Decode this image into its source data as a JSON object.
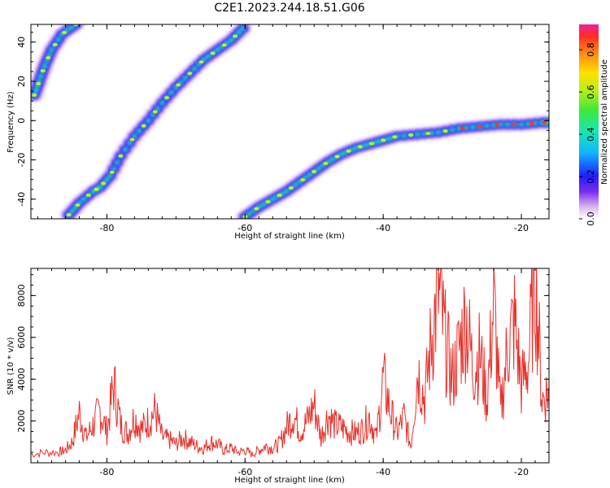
{
  "title": "C2E1.2023.244.18.51.G06",
  "chart_data": [
    {
      "type": "heatmap",
      "xlabel": "Height of straight line (km)",
      "ylabel": "Frequency (Hz)",
      "xlim": [
        -91,
        -16
      ],
      "ylim": [
        -50,
        49
      ],
      "xticks": [
        -80,
        -60,
        -40,
        -20
      ],
      "yticks": [
        -40,
        -20,
        0,
        20,
        40
      ],
      "colorbar": {
        "label": "Normalized spectral amplitude",
        "range": [
          0.0,
          0.92
        ],
        "ticks": [
          "0.0",
          "0.2",
          "0.4",
          "0.6",
          "0.8"
        ]
      },
      "tracks": [
        {
          "x": [
            -85.5,
            -84,
            -82,
            -81,
            -79.5,
            -78,
            -76,
            -74,
            -72,
            -70,
            -68,
            -66,
            -64,
            -62,
            -60.3
          ],
          "y": [
            -48,
            -42,
            -36,
            -34,
            -28,
            -18,
            -8,
            0,
            9,
            17,
            24,
            31,
            36,
            41,
            47
          ]
        },
        {
          "x": [
            -90.5,
            -89.8,
            -89,
            -88,
            -86.5,
            -84.5
          ],
          "y": [
            13,
            20,
            28,
            36,
            44,
            49
          ]
        },
        {
          "x": [
            -60,
            -58,
            -56,
            -54,
            -52,
            -50,
            -48,
            -46,
            -44,
            -42,
            -40,
            -38,
            -35,
            -32,
            -29,
            -26,
            -23,
            -20,
            -17,
            -16
          ],
          "y": [
            -49,
            -44,
            -40,
            -36,
            -31,
            -26,
            -21,
            -17,
            -14,
            -12,
            -10,
            -8,
            -7,
            -6,
            -4,
            -3,
            -2,
            -2,
            -1,
            -1
          ]
        }
      ]
    },
    {
      "type": "line",
      "xlabel": "Height of straight line (km)",
      "ylabel": "SNR (10 * v/v)",
      "xlim": [
        -91,
        -16
      ],
      "ylim": [
        0,
        9300
      ],
      "xticks": [
        -80,
        -60,
        -40,
        -20
      ],
      "yticks": [
        2000,
        4000,
        6000,
        8000
      ],
      "series": [
        {
          "color": "#e8302a",
          "x": [
            -91,
            -89,
            -87,
            -86,
            -85,
            -84,
            -83,
            -82,
            -81,
            -80,
            -79,
            -78,
            -77,
            -76,
            -75,
            -74,
            -73,
            -72,
            -71,
            -70,
            -69,
            -68,
            -67,
            -66,
            -65,
            -64,
            -63,
            -62,
            -61,
            -60,
            -59,
            -58,
            -57,
            -56,
            -55,
            -54,
            -53,
            -52,
            -51,
            -50,
            -49,
            -48,
            -47,
            -46,
            -45,
            -44,
            -43,
            -42,
            -41,
            -40,
            -39,
            -38,
            -37,
            -36,
            -35,
            -34,
            -33,
            -32,
            -31,
            -30,
            -29,
            -28,
            -27,
            -26,
            -25,
            -24,
            -23,
            -22,
            -21,
            -20,
            -19,
            -18,
            -17,
            -16
          ],
          "y": [
            400,
            500,
            500,
            600,
            1000,
            2400,
            1200,
            1800,
            2500,
            1500,
            3800,
            1800,
            1400,
            2200,
            1600,
            2000,
            2500,
            1200,
            1100,
            900,
            1200,
            1000,
            800,
            700,
            1000,
            900,
            600,
            700,
            500,
            600,
            400,
            600,
            800,
            700,
            900,
            1700,
            2300,
            1500,
            2000,
            2800,
            1200,
            2300,
            1800,
            1700,
            1500,
            1400,
            1600,
            2200,
            1200,
            4000,
            2500,
            1400,
            2200,
            800,
            4500,
            3000,
            6000,
            8200,
            5800,
            4000,
            5500,
            7000,
            4500,
            5200,
            3000,
            7600,
            2400,
            5500,
            6800,
            3700,
            4800,
            9200,
            3000,
            3500
          ]
        }
      ]
    }
  ]
}
